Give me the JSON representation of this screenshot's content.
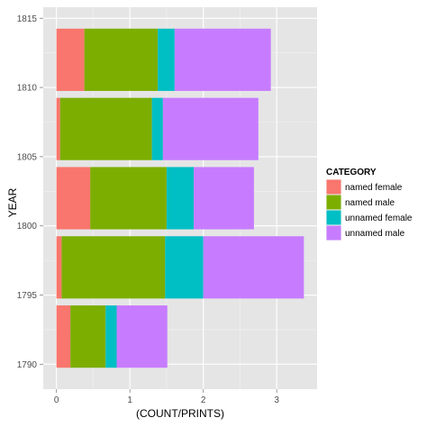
{
  "chart_data": {
    "type": "bar",
    "orientation": "horizontal",
    "stacked": true,
    "xlabel": "(COUNT/PRINTS)",
    "ylabel": "YEAR",
    "legend_title": "CATEGORY",
    "legend_position": "right",
    "xlim": [
      -0.18,
      3.55
    ],
    "ylim": [
      1788.2,
      1815.8
    ],
    "x_ticks": [
      0,
      1,
      2,
      3
    ],
    "y_ticks": [
      1790,
      1795,
      1800,
      1805,
      1810,
      1815
    ],
    "bar_height": 4.5,
    "grid": true,
    "categories": [
      1812,
      1807,
      1802,
      1797,
      1792
    ],
    "series": [
      {
        "name": "named female",
        "color": "#F8766D",
        "values": [
          0.38,
          0.05,
          0.46,
          0.07,
          0.19
        ]
      },
      {
        "name": "named male",
        "color": "#7CAE00",
        "values": [
          1.0,
          1.25,
          1.04,
          1.41,
          0.48
        ]
      },
      {
        "name": "unnamed female",
        "color": "#00BFC4",
        "values": [
          0.23,
          0.15,
          0.37,
          0.52,
          0.15
        ]
      },
      {
        "name": "unnamed male",
        "color": "#C77CFF",
        "values": [
          1.31,
          1.3,
          0.82,
          1.37,
          0.69
        ]
      }
    ]
  }
}
